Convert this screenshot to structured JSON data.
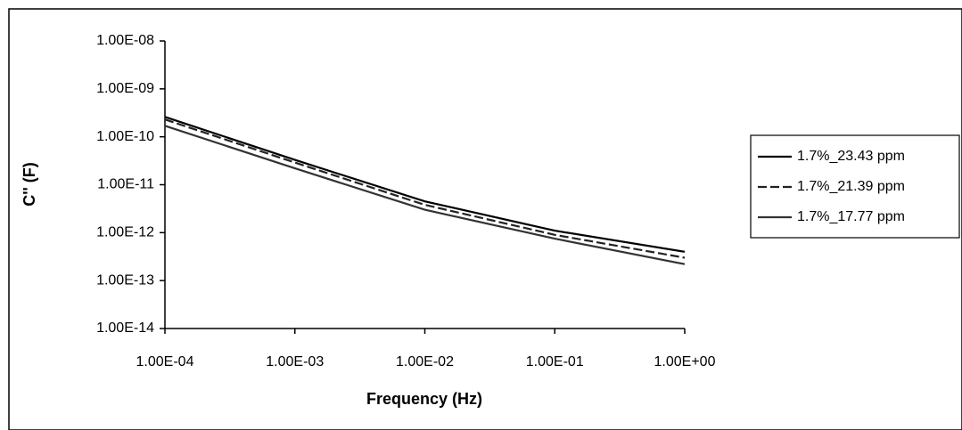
{
  "chart_data": {
    "type": "line",
    "x_label": "Frequency (Hz)",
    "y_label": "C'' (F)",
    "x": [
      0.0001,
      0.001,
      0.01,
      0.1,
      1
    ],
    "series": [
      {
        "name": "1.7%_23.43 ppm",
        "color": "#000000",
        "dash": false,
        "values": [
          2.6e-10,
          3.3e-11,
          4.5e-12,
          1.1e-12,
          4e-13
        ]
      },
      {
        "name": "1.7%_21.39 ppm",
        "color": "#222222",
        "dash": true,
        "values": [
          2.3e-10,
          2.9e-11,
          3.8e-12,
          9e-13,
          3e-13
        ]
      },
      {
        "name": "1.7%_17.77 ppm",
        "color": "#333333",
        "dash": false,
        "values": [
          1.7e-10,
          2.2e-11,
          3e-12,
          7.5e-13,
          2.2e-13
        ]
      }
    ],
    "xscale": "log",
    "yscale": "log",
    "xlim": [
      0.0001,
      1
    ],
    "ylim": [
      1e-14,
      1e-08
    ],
    "xticks": [
      {
        "value": 0.0001,
        "label": "1.00E-04"
      },
      {
        "value": 0.001,
        "label": "1.00E-03"
      },
      {
        "value": 0.01,
        "label": "1.00E-02"
      },
      {
        "value": 0.1,
        "label": "1.00E-01"
      },
      {
        "value": 1,
        "label": "1.00E+00"
      }
    ],
    "yticks": [
      {
        "value": 1e-14,
        "label": "1.00E-14"
      },
      {
        "value": 1e-13,
        "label": "1.00E-13"
      },
      {
        "value": 1e-12,
        "label": "1.00E-12"
      },
      {
        "value": 1e-11,
        "label": "1.00E-11"
      },
      {
        "value": 1e-10,
        "label": "1.00E-10"
      },
      {
        "value": 1e-09,
        "label": "1.00E-09"
      },
      {
        "value": 1e-08,
        "label": "1.00E-08"
      }
    ],
    "grid": false,
    "legend": "right"
  }
}
